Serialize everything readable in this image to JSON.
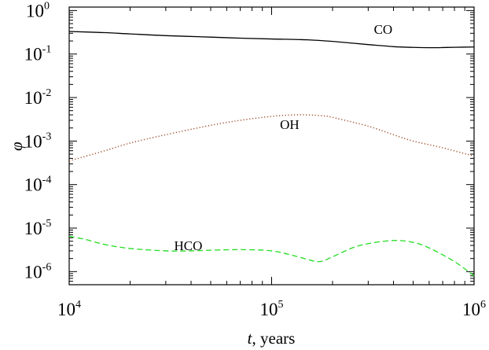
{
  "chart_data": {
    "type": "line",
    "xscale": "log",
    "yscale": "log",
    "xlim": [
      10000,
      1000000
    ],
    "ylim": [
      5e-07,
      1.2
    ],
    "xlabel": {
      "italic": "t",
      "rest": ", years"
    },
    "ylabel": "φ",
    "grid": false,
    "x_ticks": [
      {
        "base": "10",
        "exp": "4",
        "value": 10000
      },
      {
        "base": "10",
        "exp": "5",
        "value": 100000
      },
      {
        "base": "10",
        "exp": "6",
        "value": 1000000
      }
    ],
    "y_ticks": [
      {
        "base": "10",
        "exp": "0",
        "value": 1
      },
      {
        "base": "10",
        "exp": "-1",
        "value": 0.1
      },
      {
        "base": "10",
        "exp": "-2",
        "value": 0.01
      },
      {
        "base": "10",
        "exp": "-3",
        "value": 0.001
      },
      {
        "base": "10",
        "exp": "-4",
        "value": 0.0001
      },
      {
        "base": "10",
        "exp": "-5",
        "value": 1e-05
      },
      {
        "base": "10",
        "exp": "-6",
        "value": 1e-06
      }
    ],
    "series": [
      {
        "name": "CO",
        "color": "#000000",
        "dash": "solid",
        "label_at": [
          320000,
          0.29
        ],
        "x": [
          10000,
          15000,
          20000,
          30000,
          50000,
          70000,
          100000,
          150000,
          200000,
          300000,
          400000,
          500000,
          600000,
          700000,
          800000,
          1000000
        ],
        "y": [
          0.33,
          0.31,
          0.29,
          0.265,
          0.245,
          0.232,
          0.222,
          0.212,
          0.195,
          0.165,
          0.148,
          0.142,
          0.14,
          0.141,
          0.143,
          0.145
        ]
      },
      {
        "name": "OH",
        "color": "#a0522d",
        "dash": "dotted",
        "label_at": [
          110000,
          0.0019
        ],
        "x": [
          10000,
          15000,
          20000,
          30000,
          50000,
          70000,
          100000,
          130000,
          150000,
          180000,
          200000,
          300000,
          400000,
          500000,
          700000,
          1000000
        ],
        "y": [
          0.00035,
          0.0006,
          0.0009,
          0.0014,
          0.0023,
          0.003,
          0.0037,
          0.004,
          0.004,
          0.0038,
          0.0035,
          0.0022,
          0.0014,
          0.001,
          0.0007,
          0.00045
        ]
      },
      {
        "name": "HCO",
        "color": "#22dd22",
        "dash": "dashed",
        "label_at": [
          33000,
          3.1e-06
        ],
        "x": [
          10000,
          12000,
          15000,
          20000,
          30000,
          40000,
          50000,
          70000,
          100000,
          130000,
          170000,
          200000,
          250000,
          300000,
          400000,
          500000,
          600000,
          800000,
          1000000
        ],
        "y": [
          6.5e-06,
          5.5e-06,
          4.2e-06,
          3.4e-06,
          3e-06,
          3e-06,
          3.1e-06,
          3.2e-06,
          3e-06,
          2.3e-06,
          1.7e-06,
          2.2e-06,
          3.5e-06,
          4.4e-06,
          5.2e-06,
          4.7e-06,
          3.5e-06,
          1.7e-06,
          8e-07
        ]
      }
    ]
  }
}
